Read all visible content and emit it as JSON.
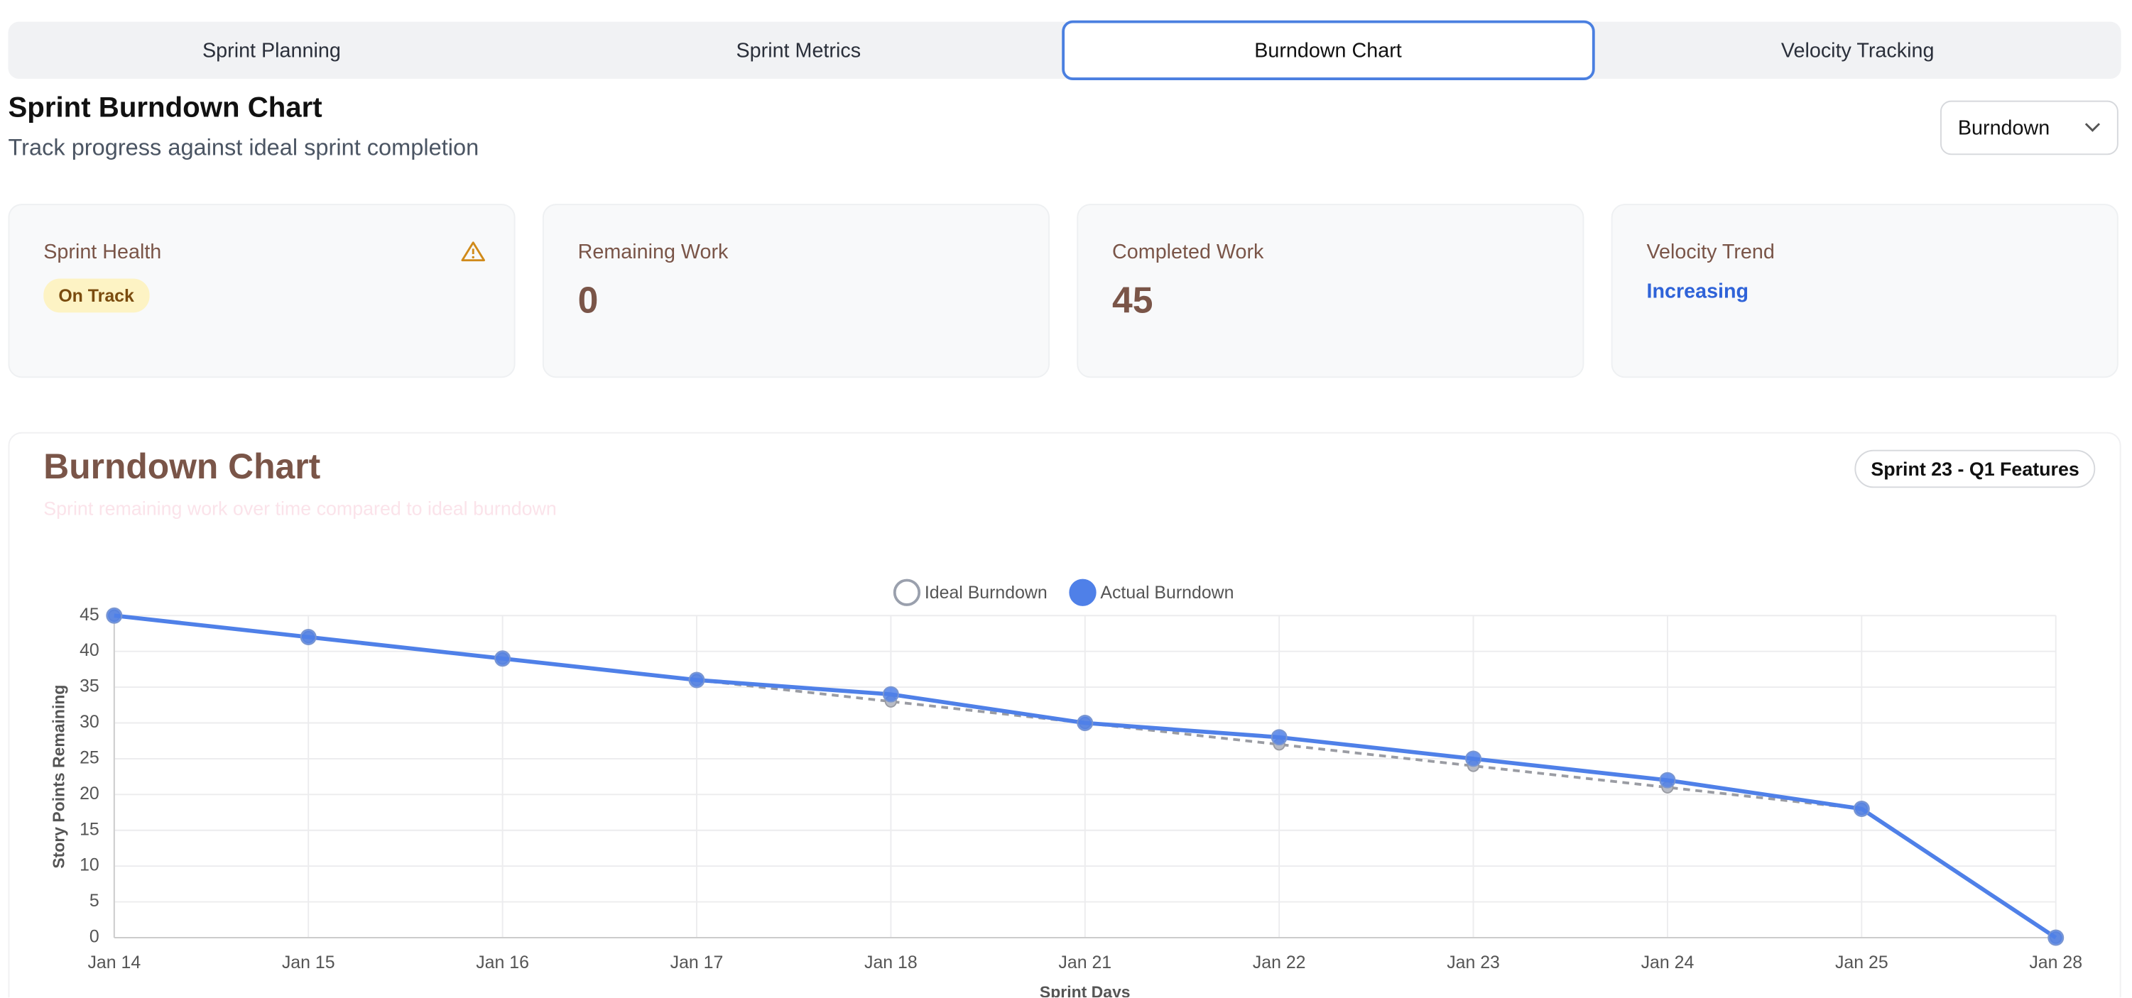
{
  "tabs": [
    "Sprint Planning",
    "Sprint Metrics",
    "Burndown Chart",
    "Velocity Tracking"
  ],
  "header": {
    "title": "Sprint Burndown Chart",
    "subtitle": "Track progress against ideal sprint completion"
  },
  "dropdown": "Burndown",
  "cards": [
    {
      "label": "Sprint Health",
      "badge": "On Track"
    },
    {
      "label": "Remaining Work",
      "value": 0
    },
    {
      "label": "Completed Work",
      "value": 45
    },
    {
      "label": "Velocity Trend",
      "value": "Increasing"
    }
  ],
  "chart_badge": "Sprint 23 - Q1 Features",
  "chart_data": {
    "type": "line",
    "title": "Burndown Chart",
    "subtitle": "Sprint remaining work over time compared to ideal burndown",
    "x_label": "Sprint Days",
    "y_label": "Story Points Remaining",
    "categories": [
      "Jan 14",
      "Jan 15",
      "Jan 16",
      "Jan 17",
      "Jan 18",
      "Jan 21",
      "Jan 22",
      "Jan 23",
      "Jan 24",
      "Jan 25",
      "Jan 28"
    ],
    "series": [
      {
        "name": "Ideal Burndown",
        "color": "#9a9ca3",
        "values": [
          45,
          42,
          39,
          36,
          33,
          30,
          27,
          24,
          21,
          18,
          0
        ]
      },
      {
        "name": "Actual Burndown",
        "color": "#4f80e8",
        "values": [
          45,
          42,
          39,
          36,
          34,
          30,
          28,
          25,
          22,
          18,
          0
        ]
      }
    ],
    "ylim": [
      0,
      45
    ],
    "yticks": [
      0,
      5,
      10,
      15,
      20,
      25,
      30,
      35,
      40,
      45
    ],
    "grid": true,
    "legend": "top"
  }
}
